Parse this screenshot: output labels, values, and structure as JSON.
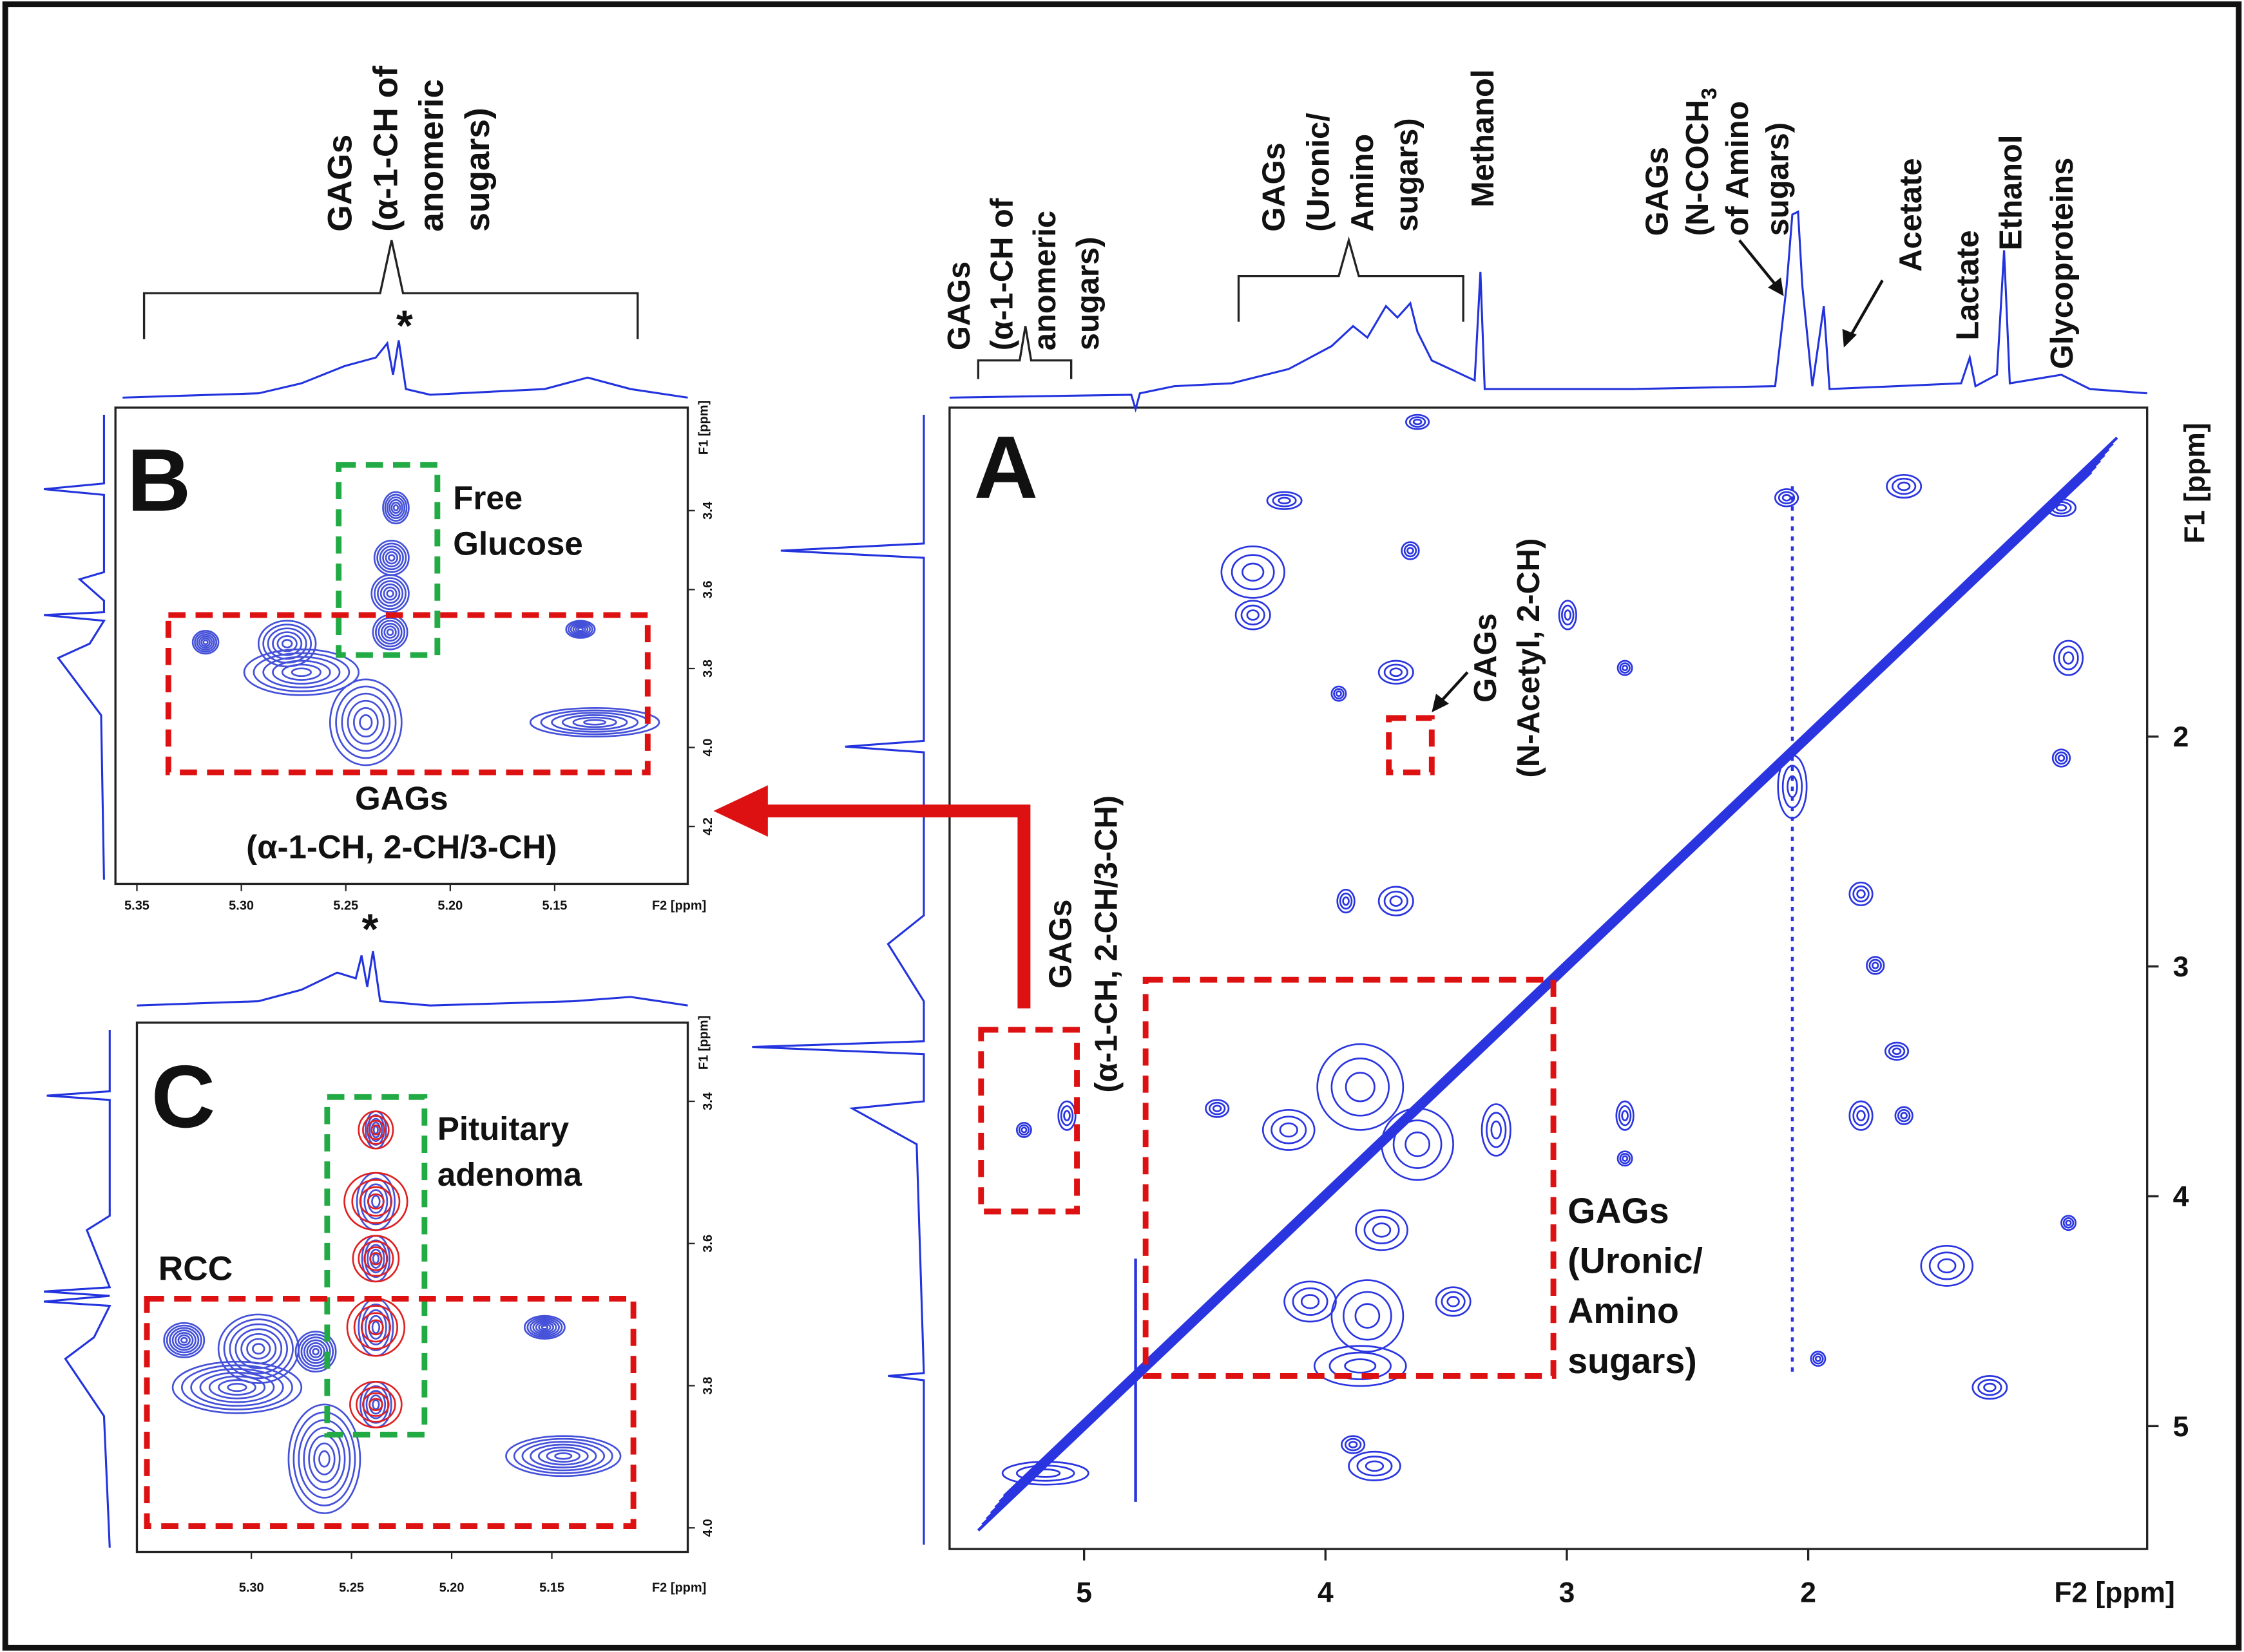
{
  "panel_a": {
    "label": "A",
    "x_axis_label": "F2 [ppm]",
    "y_axis_label": "F1 [ppm]",
    "xticks": [
      5,
      4,
      3,
      2
    ],
    "yticks": [
      2,
      3,
      4,
      5
    ],
    "top_labels": {
      "anomeric": [
        "GAGs",
        "(α-1-CH of",
        "anomeric",
        "sugars)"
      ],
      "uronic": [
        "GAGs",
        "(Uronic/",
        "Amino",
        "sugars)"
      ],
      "methanol": "Methanol",
      "n_acetyl": [
        "GAGs",
        {
          "text": "(N-COCH",
          "subscript": "3"
        },
        "of Amino",
        "sugars)"
      ],
      "acetate": "Acetate",
      "lactate": "Lactate",
      "ethanol": "Ethanol",
      "glycoproteins": "Glycoproteins"
    },
    "inset_labels": {
      "n_acetyl_2ch": [
        "GAGs",
        "(N-Acetyl, 2-CH)"
      ],
      "alpha_1ch": [
        "GAGs",
        "(α-1-CH, 2-CH/3-CH)"
      ],
      "uronic_amino": [
        "GAGs",
        "(Uronic/",
        "Amino",
        "sugars)"
      ]
    }
  },
  "panel_b": {
    "label": "B",
    "top_label": [
      "GAGs",
      "(α-1-CH of",
      "anomeric",
      "sugars)"
    ],
    "marker": "*",
    "free_glucose": [
      "Free",
      "Glucose"
    ],
    "gags": [
      "GAGs",
      "(α-1-CH, 2-CH/3-CH)"
    ],
    "x_axis_label": "F2 [ppm]",
    "y_axis_label": "F1 [ppm]",
    "xticks": [
      5.35,
      {
        "value": 5.3,
        "label": "5.30"
      },
      5.25,
      {
        "value": 5.2,
        "label": "5.20"
      },
      5.15
    ],
    "yticks": [
      3.4,
      3.6,
      3.8,
      {
        "value": 4,
        "label": "4.0"
      },
      4.2
    ]
  },
  "panel_c": {
    "label": "C",
    "marker": "*",
    "pituitary": [
      "Pituitary",
      "adenoma"
    ],
    "rcc": "RCC",
    "x_axis_label": "F2 [ppm]",
    "y_axis_label": "F1 [ppm]",
    "xticks": [
      {
        "value": 5.3,
        "label": "5.30"
      },
      5.25,
      {
        "value": 5.2,
        "label": "5.20"
      },
      5.15
    ],
    "yticks": [
      3.4,
      3.6,
      3.8,
      {
        "value": 4,
        "label": "4.0"
      }
    ]
  }
}
